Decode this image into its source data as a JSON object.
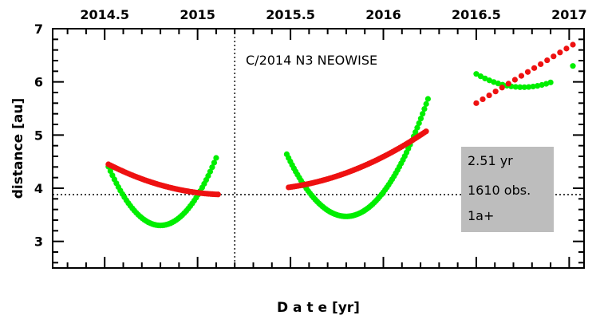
{
  "chart_data": {
    "type": "scatter",
    "title": "C/2014 N3 NEOWISE",
    "xlabel": "D a t e [yr]",
    "ylabel": "distance [au]",
    "xlim": [
      2014.22,
      2017.08
    ],
    "ylim": [
      2.5,
      7.0
    ],
    "xticks_top": [
      "2014.5",
      "2015",
      "2015.5",
      "2016",
      "2016.5",
      "2017"
    ],
    "xtick_values": [
      2014.5,
      2015.0,
      2015.5,
      2016.0,
      2016.5,
      2017.0
    ],
    "yticks": [
      "3",
      "4",
      "5",
      "6",
      "7"
    ],
    "ytick_values": [
      3,
      4,
      5,
      6,
      7
    ],
    "reference_lines": {
      "horizontal_y": 3.88,
      "vertical_x": 2015.2
    },
    "info_box": {
      "arc": "2.51 yr",
      "observations": "1610 obs.",
      "orbit_quality": "1a+"
    },
    "series": [
      {
        "color": "#00ee00",
        "segments": [
          {
            "x_start": 2014.52,
            "x_end": 2015.1,
            "shape": "quadratic",
            "y_start": 4.3,
            "x_min": 2014.8,
            "y_min": 3.3,
            "y_end": 4.57,
            "count": 55
          },
          {
            "x_start": 2015.48,
            "x_end": 2016.24,
            "shape": "quadratic",
            "y_start": 4.47,
            "x_min": 2015.8,
            "y_min": 3.47,
            "y_end": 5.68,
            "count": 80
          },
          {
            "x_start": 2016.5,
            "x_end": 2016.9,
            "shape": "quadratic",
            "y_start": 6.15,
            "x_min": 2016.75,
            "y_min": 5.9,
            "y_end": 6.05,
            "count": 18
          },
          {
            "x_start": 2017.02,
            "x_end": 2017.02,
            "shape": "quadratic",
            "y_start": 6.3,
            "x_min": 2017.02,
            "y_min": 6.3,
            "y_end": 6.3,
            "count": 1
          }
        ]
      },
      {
        "color": "#ee1111",
        "segments": [
          {
            "x_start": 2014.52,
            "x_end": 2015.11,
            "shape": "quadratic",
            "y_start": 4.45,
            "x_min": 2015.16,
            "y_min": 3.88,
            "y_end": 3.88,
            "count": 60
          },
          {
            "x_start": 2015.49,
            "x_end": 2016.23,
            "shape": "quadratic",
            "y_start": 3.98,
            "x_min": 2015.3,
            "y_min": 3.97,
            "y_end": 5.07,
            "count": 75
          },
          {
            "x_start": 2016.5,
            "x_end": 2017.02,
            "shape": "linear",
            "y_start": 5.6,
            "y_end": 6.7,
            "count": 16
          }
        ]
      }
    ]
  }
}
